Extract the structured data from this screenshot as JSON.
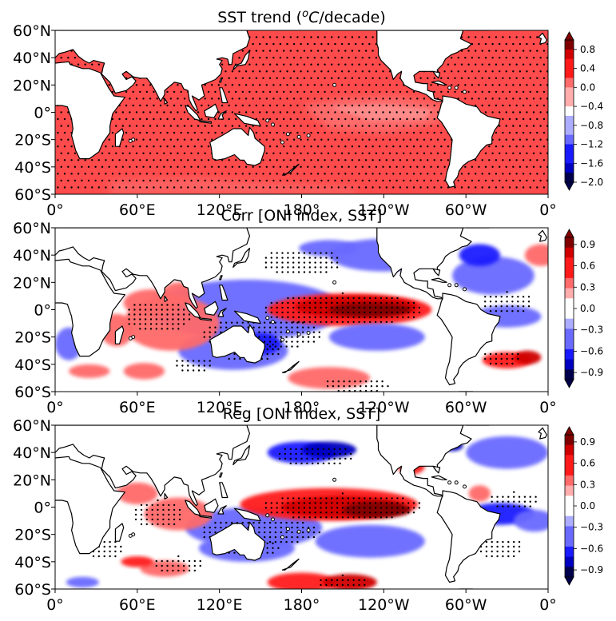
{
  "chart_data": [
    {
      "type": "heatmap",
      "map_projection": "PlateCarree, 0°–360° longitude, 60°S–60°N",
      "title": "SST trend (°C/decade)",
      "title_parts": {
        "pre": "SST trend (",
        "unit_base": "C",
        "unit_sup": "o",
        "post": "/decade)"
      },
      "xticks": [
        "0°",
        "60°E",
        "120°E",
        "180°",
        "120°W",
        "60°W",
        "0°"
      ],
      "yticks": [
        "60°N",
        "40°N",
        "20°N",
        "0°",
        "20°S",
        "40°S",
        "60°S"
      ],
      "colorbar": {
        "ticks": [
          "0.8",
          "0.4",
          "0.0",
          "−0.4",
          "−0.8",
          "−1.2",
          "−1.6",
          "−2.0"
        ],
        "range": [
          -2.0,
          1.0
        ],
        "levels": 15,
        "cmap": "seismic",
        "extend": "both"
      },
      "field_summary": "Positive warming trend (~0.2–0.4) over nearly all ocean basins; weaker trend in the central and eastern equatorial Pacific; stippling (significance) almost everywhere",
      "stippling": "nearly all ocean points"
    },
    {
      "type": "heatmap",
      "title": "Corr [ONI index, SST]",
      "xticks": [
        "0°",
        "60°E",
        "120°E",
        "180°",
        "120°W",
        "60°W",
        "0°"
      ],
      "yticks": [
        "60°N",
        "40°N",
        "20°N",
        "0°",
        "20°S",
        "40°S",
        "60°S"
      ],
      "colorbar": {
        "ticks": [
          "0.9",
          "0.6",
          "0.3",
          "0.0",
          "−0.3",
          "−0.6",
          "−0.9"
        ],
        "range": [
          -1.0,
          1.0
        ],
        "levels": 14,
        "cmap": "seismic",
        "extend": "both"
      },
      "field_summary": "Strong positive correlation (>0.9) in the central–eastern equatorial Pacific; negative horseshoe over the western Pacific extending to the NE and SE Pacific; positive values in the Indian Ocean and NE Pacific coast; negative South Atlantic pocket",
      "stippling": "significant regions (equatorial Pacific, horseshoe, Indian Ocean, parts of Atlantic)"
    },
    {
      "type": "heatmap",
      "title": "Reg [ONI index, SST]",
      "xticks": [
        "0°",
        "60°E",
        "120°E",
        "180°",
        "120°W",
        "60°W",
        "0°"
      ],
      "yticks": [
        "60°N",
        "40°N",
        "20°N",
        "0°",
        "20°S",
        "40°S",
        "60°S"
      ],
      "colorbar": {
        "ticks": [
          "0.9",
          "0.6",
          "0.3",
          "0.0",
          "−0.3",
          "−0.6",
          "−0.9"
        ],
        "range": [
          -1.0,
          1.0
        ],
        "levels": 14,
        "cmap": "seismic",
        "extend": "both"
      },
      "field_summary": "Regression pattern similar to correlation: strong positive tongue along the equatorial Pacific (up to >1.0 near South America), negative North Pacific and South Pacific lobes, positive tropical Indian Ocean",
      "stippling": "significant regions similar to correlation panel"
    }
  ],
  "colors": {
    "ocean_trend_base": "#ff4b4b",
    "land": "#ffffff",
    "coast": "#000000",
    "stipple": "#000000",
    "cmap_scale": [
      "#00004c",
      "#0000c0",
      "#1a1aff",
      "#6a6aff",
      "#adadff",
      "#ffffff",
      "#ffadad",
      "#ff6a6a",
      "#ff1a1a",
      "#d00000",
      "#800000"
    ]
  }
}
